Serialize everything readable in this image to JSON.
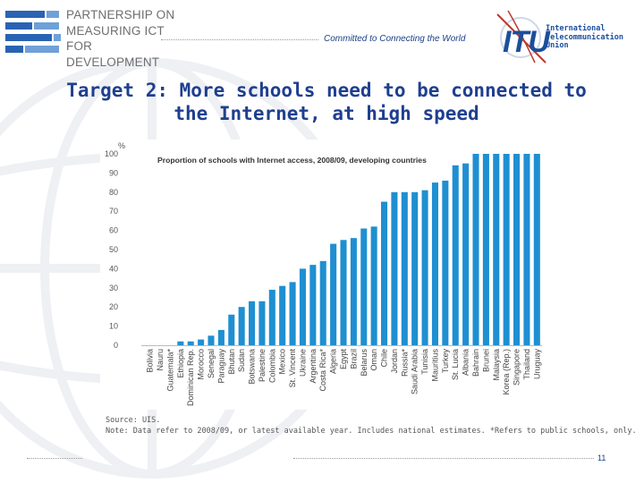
{
  "header": {
    "org_line1": "PARTNERSHIP ON",
    "org_line2": "MEASURING ICT",
    "org_line3": "FOR DEVELOPMENT",
    "tagline": "Committed to Connecting the World",
    "itu_acronym": "ITU",
    "itu_line1": "International",
    "itu_line2": "Telecommunication",
    "itu_line3": "Union"
  },
  "slide": {
    "title_line1": "Target 2: More schools need to be connected to",
    "title_line2": "the Internet, at high speed",
    "source": "Source: UIS.",
    "note": "Note: Data refer to 2008/09, or latest available year. Includes national estimates. *Refers to public schools, only.",
    "page_number": "11"
  },
  "colors": {
    "bar": "#1f8fd1",
    "title": "#1f3f8f",
    "brand_blue": "#2a63b3"
  },
  "chart_data": {
    "type": "bar",
    "title": "Proportion of schools with Internet access, 2008/09, developing countries",
    "ylabel": "%",
    "ylim": [
      0,
      100
    ],
    "yticks": [
      0,
      10,
      20,
      30,
      40,
      50,
      60,
      70,
      80,
      90,
      100
    ],
    "categories": [
      "Bolivia",
      "Nauru",
      "Guatemala*",
      "Ethiopia",
      "Dominican Rep.",
      "Morocco",
      "Senegal",
      "Paraguay",
      "Bhutan",
      "Sudan",
      "Botswana",
      "Palestine",
      "Colombia",
      "Mexico",
      "St. Vincent",
      "Ukraine",
      "Argentina",
      "Costa Rica*",
      "Algeria",
      "Egypt",
      "Brazil",
      "Belarus",
      "Oman",
      "Chile",
      "Jordan",
      "Russia*",
      "Saudi Arabia",
      "Tunisia",
      "Mauritius",
      "Turkey",
      "St. Lucia",
      "Albania",
      "Bahrain",
      "Brunei",
      "Malaysia",
      "Korea (Rep.)",
      "Singapore",
      "Thailand",
      "Uruguay"
    ],
    "values": [
      0,
      0,
      0,
      2,
      2,
      3,
      5,
      8,
      16,
      20,
      23,
      23,
      29,
      31,
      33,
      40,
      42,
      44,
      53,
      55,
      56,
      61,
      62,
      75,
      80,
      80,
      80,
      81,
      85,
      86,
      94,
      95,
      100,
      100,
      100,
      100,
      100,
      100,
      100
    ]
  }
}
